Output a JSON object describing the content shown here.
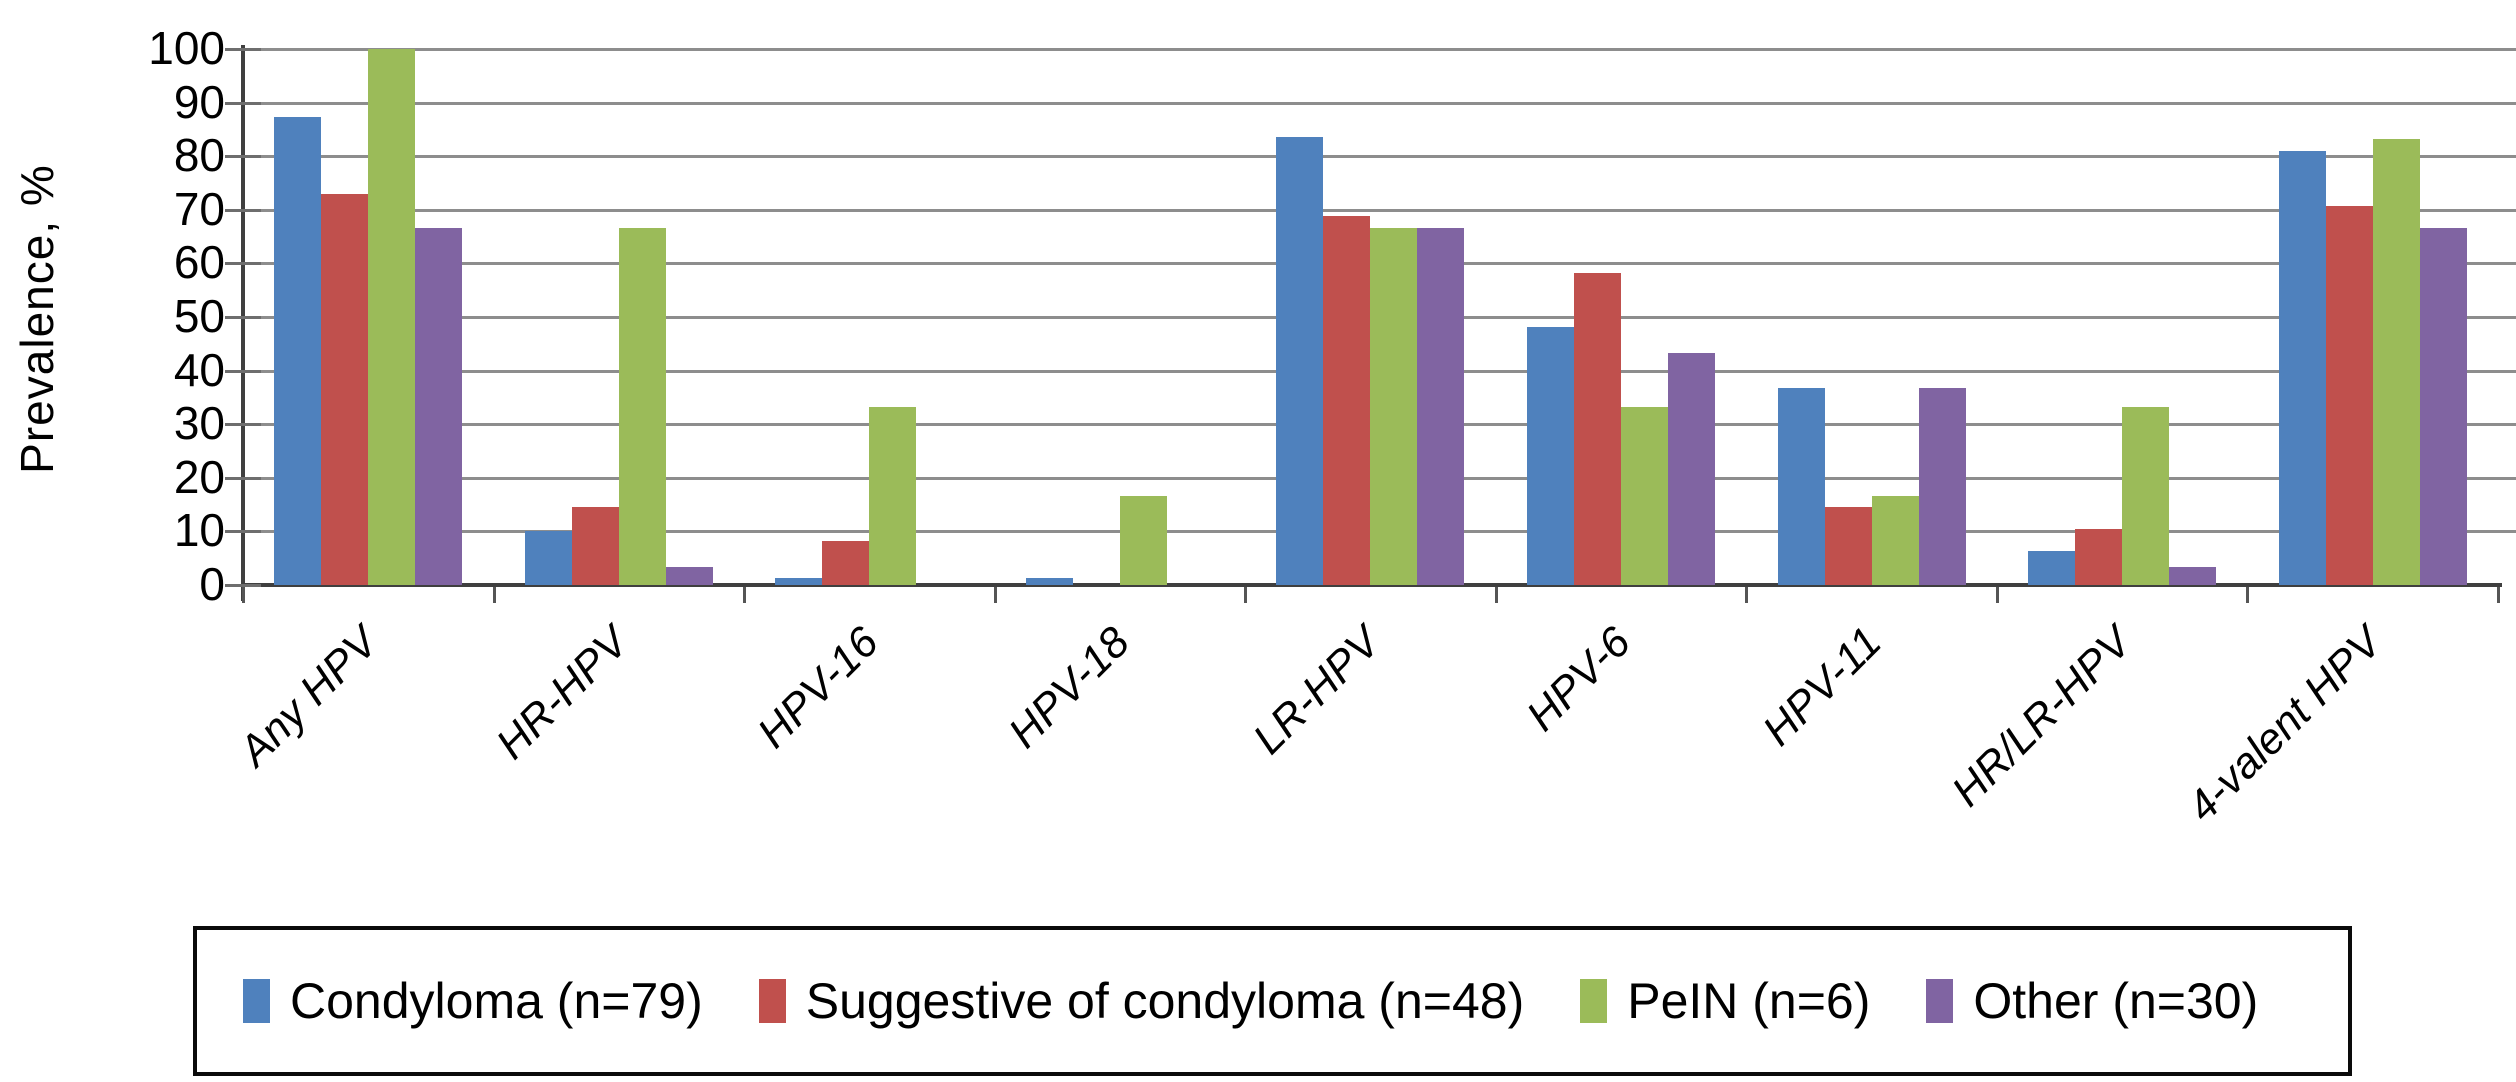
{
  "chart_data": {
    "type": "bar",
    "title": "",
    "xlabel": "",
    "ylabel": "Prevalence, %",
    "ylim": [
      0,
      100
    ],
    "yticks": [
      0,
      10,
      20,
      30,
      40,
      50,
      60,
      70,
      80,
      90,
      100
    ],
    "grid": true,
    "legend_position": "bottom",
    "categories": [
      "Any HPV",
      "HR-HPV",
      "HPV-16",
      "HPV-18",
      "LR-HPV",
      "HPV-6",
      "HPV-11",
      "HR/LR-HPV",
      "4-valent HPV"
    ],
    "series": [
      {
        "name": "Condyloma (n=79)",
        "color": "#4F81BD",
        "values": [
          87.3,
          10.1,
          1.3,
          1.3,
          83.5,
          48.1,
          36.7,
          6.3,
          81.0
        ]
      },
      {
        "name": "Suggestive of condyloma (n=48)",
        "color": "#C0504D",
        "values": [
          72.9,
          14.6,
          8.3,
          0,
          68.8,
          58.3,
          14.6,
          10.4,
          70.8
        ]
      },
      {
        "name": "PeIN (n=6)",
        "color": "#9BBB59",
        "values": [
          100,
          66.7,
          33.3,
          16.7,
          66.7,
          33.3,
          16.7,
          33.3,
          83.3
        ]
      },
      {
        "name": "Other (n=30)",
        "color": "#8064A2",
        "values": [
          66.7,
          3.3,
          0,
          0,
          66.7,
          43.3,
          36.7,
          3.3,
          66.7
        ]
      }
    ],
    "axis_colors": {
      "gridline": "#8d8d8d",
      "axis_line": "#3f3f3f",
      "text": "#000000"
    }
  }
}
